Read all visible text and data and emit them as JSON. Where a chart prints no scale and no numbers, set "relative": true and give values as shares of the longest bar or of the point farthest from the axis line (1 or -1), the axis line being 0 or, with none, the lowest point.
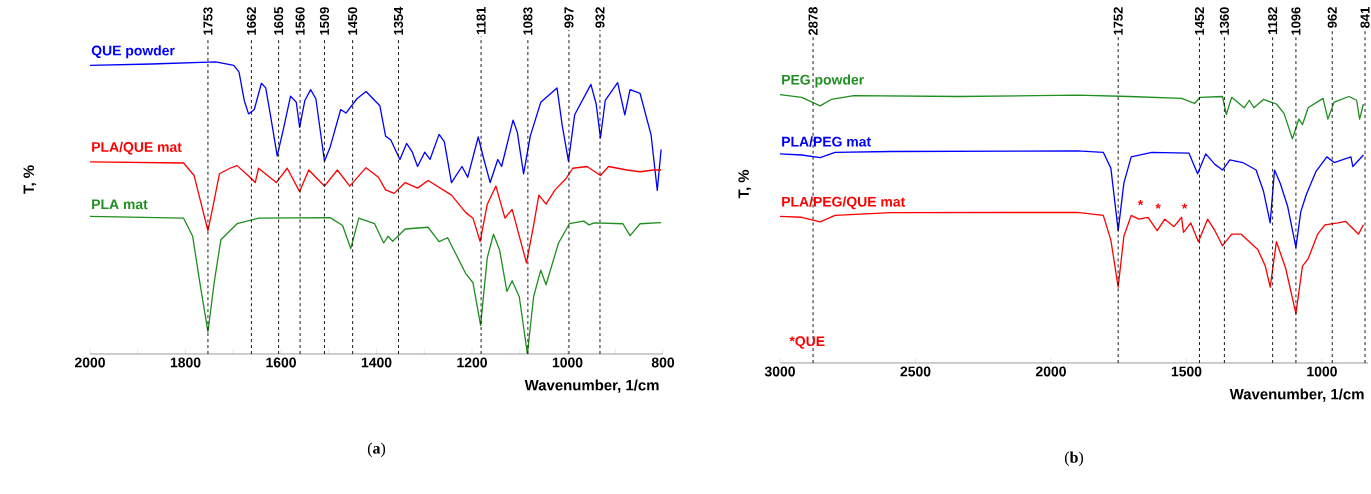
{
  "chart_data": [
    {
      "type": "line",
      "relative": true,
      "xlabel": "Wavenumber, 1/cm",
      "ylabel": "T, %",
      "xlim": [
        2000,
        800
      ],
      "xticks": [
        2000,
        {
          "value": 1900,
          "label": null
        },
        1800,
        {
          "value": 1700,
          "label": null
        },
        1600,
        {
          "value": 1500,
          "label": null
        },
        1400,
        {
          "value": 1300,
          "label": null
        },
        1200,
        {
          "value": 1100,
          "label": null
        },
        1000,
        {
          "value": 900,
          "label": null
        },
        800
      ],
      "series": [
        {
          "name": "QUE powder",
          "color": "#0000ff",
          "x": [
            2000,
            1871,
            1737,
            1699,
            1688,
            1677,
            1668,
            1656,
            1641,
            1632,
            1621,
            1608,
            1595,
            1580,
            1568,
            1561,
            1550,
            1538,
            1527,
            1509,
            1497,
            1475,
            1464,
            1441,
            1422,
            1393,
            1381,
            1370,
            1351,
            1337,
            1325,
            1314,
            1299,
            1288,
            1269,
            1258,
            1243,
            1221,
            1209,
            1187,
            1176,
            1162,
            1146,
            1138,
            1114,
            1105,
            1092,
            1078,
            1056,
            1022,
            1011,
            998,
            985,
            951,
            940,
            931,
            921,
            895,
            880,
            869,
            848,
            825,
            812,
            804
          ],
          "values": [
            0.988,
            0.993,
            1.0,
            0.988,
            0.966,
            0.868,
            0.822,
            0.837,
            0.927,
            0.911,
            0.807,
            0.678,
            0.77,
            0.883,
            0.862,
            0.776,
            0.868,
            0.905,
            0.874,
            0.66,
            0.709,
            0.837,
            0.825,
            0.874,
            0.899,
            0.85,
            0.746,
            0.733,
            0.666,
            0.721,
            0.691,
            0.642,
            0.691,
            0.666,
            0.752,
            0.727,
            0.587,
            0.642,
            0.605,
            0.743,
            0.672,
            0.587,
            0.666,
            0.642,
            0.801,
            0.758,
            0.617,
            0.746,
            0.862,
            0.911,
            0.782,
            0.66,
            0.819,
            0.923,
            0.856,
            0.74,
            0.868,
            0.929,
            0.819,
            0.905,
            0.892,
            0.75,
            0.56,
            0.7
          ]
        },
        {
          "name": "PLA/QUE mat",
          "color": "#ff0000",
          "x": [
            2000,
            1804,
            1782,
            1767,
            1753,
            1743,
            1729,
            1707,
            1692,
            1669,
            1654,
            1647,
            1610,
            1587,
            1561,
            1542,
            1509,
            1482,
            1456,
            1422,
            1396,
            1381,
            1363,
            1340,
            1314,
            1292,
            1243,
            1213,
            1198,
            1183,
            1168,
            1150,
            1131,
            1116,
            1086,
            1071,
            1060,
            1045,
            1026,
            1004,
            989,
            959,
            931,
            914,
            876,
            848,
            820,
            804
          ],
          "values": [
            0.658,
            0.654,
            0.611,
            0.513,
            0.422,
            0.501,
            0.617,
            0.636,
            0.645,
            0.611,
            0.587,
            0.636,
            0.587,
            0.636,
            0.556,
            0.63,
            0.575,
            0.63,
            0.575,
            0.638,
            0.605,
            0.562,
            0.55,
            0.587,
            0.568,
            0.594,
            0.544,
            0.484,
            0.465,
            0.385,
            0.513,
            0.575,
            0.465,
            0.495,
            0.312,
            0.44,
            0.544,
            0.513,
            0.562,
            0.599,
            0.636,
            0.642,
            0.611,
            0.642,
            0.63,
            0.624,
            0.63,
            0.63
          ]
        },
        {
          "name": "PLA mat",
          "color": "#1f8f1f",
          "x": [
            2000,
            1804,
            1785,
            1770,
            1753,
            1740,
            1726,
            1692,
            1647,
            1497,
            1471,
            1454,
            1437,
            1404,
            1385,
            1376,
            1366,
            1340,
            1292,
            1269,
            1251,
            1213,
            1198,
            1182,
            1168,
            1155,
            1142,
            1127,
            1116,
            1101,
            1084,
            1071,
            1056,
            1045,
            1019,
            996,
            966,
            955,
            944,
            884,
            869,
            848,
            804
          ],
          "values": [
            0.471,
            0.465,
            0.403,
            0.244,
            0.076,
            0.244,
            0.391,
            0.446,
            0.465,
            0.467,
            0.44,
            0.361,
            0.465,
            0.446,
            0.38,
            0.403,
            0.386,
            0.428,
            0.434,
            0.385,
            0.398,
            0.275,
            0.244,
            0.098,
            0.33,
            0.41,
            0.355,
            0.214,
            0.251,
            0.196,
            0.0,
            0.196,
            0.287,
            0.237,
            0.379,
            0.446,
            0.455,
            0.442,
            0.449,
            0.446,
            0.405,
            0.446,
            0.45
          ]
        }
      ],
      "ref_lines": [
        {
          "axis": "x",
          "value": 1662,
          "label": "1662",
          "line_style": "dashed"
        },
        {
          "axis": "x",
          "value": 1605,
          "label": "1605",
          "line_style": "dashed"
        },
        {
          "axis": "x",
          "value": 1560,
          "label": "1560",
          "line_style": "dashed"
        },
        {
          "axis": "x",
          "value": 1509,
          "label": "1509",
          "line_style": "dashed"
        },
        {
          "axis": "x",
          "value": 1354,
          "label": "1354",
          "line_style": "dashed"
        },
        {
          "axis": "x",
          "value": 997,
          "label": "997",
          "line_style": "dashed"
        },
        {
          "axis": "x",
          "value": 932,
          "label": "932",
          "line_style": "dashed"
        },
        {
          "axis": "x",
          "value": 1753,
          "label": "1753",
          "line_style": "dashed"
        },
        {
          "axis": "x",
          "value": 1450,
          "label": "1450",
          "line_style": "dashed"
        },
        {
          "axis": "x",
          "value": 1181,
          "label": "1181",
          "line_style": "dashed"
        },
        {
          "axis": "x",
          "value": 1083,
          "label": "1083",
          "line_style": "dashed"
        }
      ],
      "annotations": [
        "(**a**)"
      ]
    },
    {
      "type": "line",
      "relative": true,
      "xlabel": "Wavenumber, 1/cm",
      "ylabel": "T, %",
      "xlim": [
        3000,
        830
      ],
      "xticks": [
        3000,
        2500,
        2000,
        1500,
        1000
      ],
      "series": [
        {
          "name": "PEG powder",
          "color": "#1f8f1f",
          "x": [
            3000,
            2920,
            2852,
            2811,
            2728,
            2343,
            1903,
            1711,
            1518,
            1470,
            1450,
            1367,
            1353,
            1333,
            1287,
            1268,
            1251,
            1216,
            1168,
            1140,
            1109,
            1085,
            1072,
            1051,
            996,
            978,
            955,
            900,
            872,
            861,
            847
          ],
          "values": [
            1.0,
            0.99,
            0.958,
            0.982,
            0.996,
            0.993,
            0.998,
            0.993,
            0.986,
            0.967,
            0.99,
            0.993,
            0.926,
            0.99,
            0.951,
            0.979,
            0.951,
            0.982,
            0.965,
            0.93,
            0.835,
            0.909,
            0.888,
            0.951,
            0.986,
            0.909,
            0.972,
            0.993,
            0.979,
            0.909,
            0.965
          ]
        },
        {
          "name": "PLA/PEG mat",
          "color": "#0000ff",
          "x": [
            3000,
            2920,
            2852,
            2797,
            2591,
            1903,
            1807,
            1779,
            1752,
            1731,
            1704,
            1628,
            1491,
            1459,
            1429,
            1395,
            1367,
            1340,
            1292,
            1243,
            1216,
            1191,
            1175,
            1154,
            1127,
            1096,
            1078,
            1058,
            1023,
            982,
            955,
            893,
            886,
            847
          ],
          "values": [
            0.779,
            0.775,
            0.765,
            0.785,
            0.788,
            0.79,
            0.785,
            0.726,
            0.493,
            0.67,
            0.768,
            0.785,
            0.782,
            0.705,
            0.779,
            0.74,
            0.719,
            0.757,
            0.747,
            0.719,
            0.641,
            0.522,
            0.719,
            0.67,
            0.585,
            0.431,
            0.564,
            0.627,
            0.712,
            0.768,
            0.747,
            0.768,
            0.732,
            0.775
          ]
        },
        {
          "name": "PLA/PEG/QUE mat",
          "color": "#ff0000",
          "x": [
            3000,
            2920,
            2852,
            2797,
            2591,
            1903,
            1807,
            1779,
            1752,
            1731,
            1704,
            1676,
            1642,
            1608,
            1580,
            1546,
            1518,
            1511,
            1484,
            1456,
            1422,
            1395,
            1367,
            1333,
            1298,
            1237,
            1209,
            1191,
            1168,
            1134,
            1096,
            1072,
            1051,
            1016,
            989,
            941,
            913,
            865,
            847
          ],
          "values": [
            0.546,
            0.543,
            0.526,
            0.55,
            0.56,
            0.561,
            0.55,
            0.458,
            0.283,
            0.472,
            0.55,
            0.536,
            0.543,
            0.493,
            0.536,
            0.508,
            0.543,
            0.487,
            0.522,
            0.452,
            0.536,
            0.493,
            0.437,
            0.48,
            0.48,
            0.423,
            0.361,
            0.283,
            0.452,
            0.353,
            0.184,
            0.361,
            0.388,
            0.48,
            0.515,
            0.522,
            0.528,
            0.48,
            0.515
          ]
        }
      ],
      "ref_lines": [
        {
          "axis": "x",
          "value": 2878,
          "label": "2878",
          "line_style": "dashed"
        },
        {
          "axis": "x",
          "value": 1452,
          "label": "1452",
          "line_style": "dashed"
        },
        {
          "axis": "x",
          "value": 1360,
          "label": "1360",
          "line_style": "dashed"
        },
        {
          "axis": "x",
          "value": 1096,
          "label": "1096",
          "line_style": "dashed"
        },
        {
          "axis": "x",
          "value": 962,
          "label": "962",
          "line_style": "dashed"
        },
        {
          "axis": "x",
          "value": 841,
          "label": "841",
          "line_style": "dashed"
        },
        {
          "axis": "x",
          "value": 1752,
          "label": "1752",
          "line_style": "dashed"
        },
        {
          "axis": "x",
          "value": 1182,
          "label": "1182",
          "line_style": "dashed"
        }
      ],
      "annotations": [
        "*",
        "*",
        "*",
        "*QUE",
        "(**b**)"
      ]
    }
  ]
}
